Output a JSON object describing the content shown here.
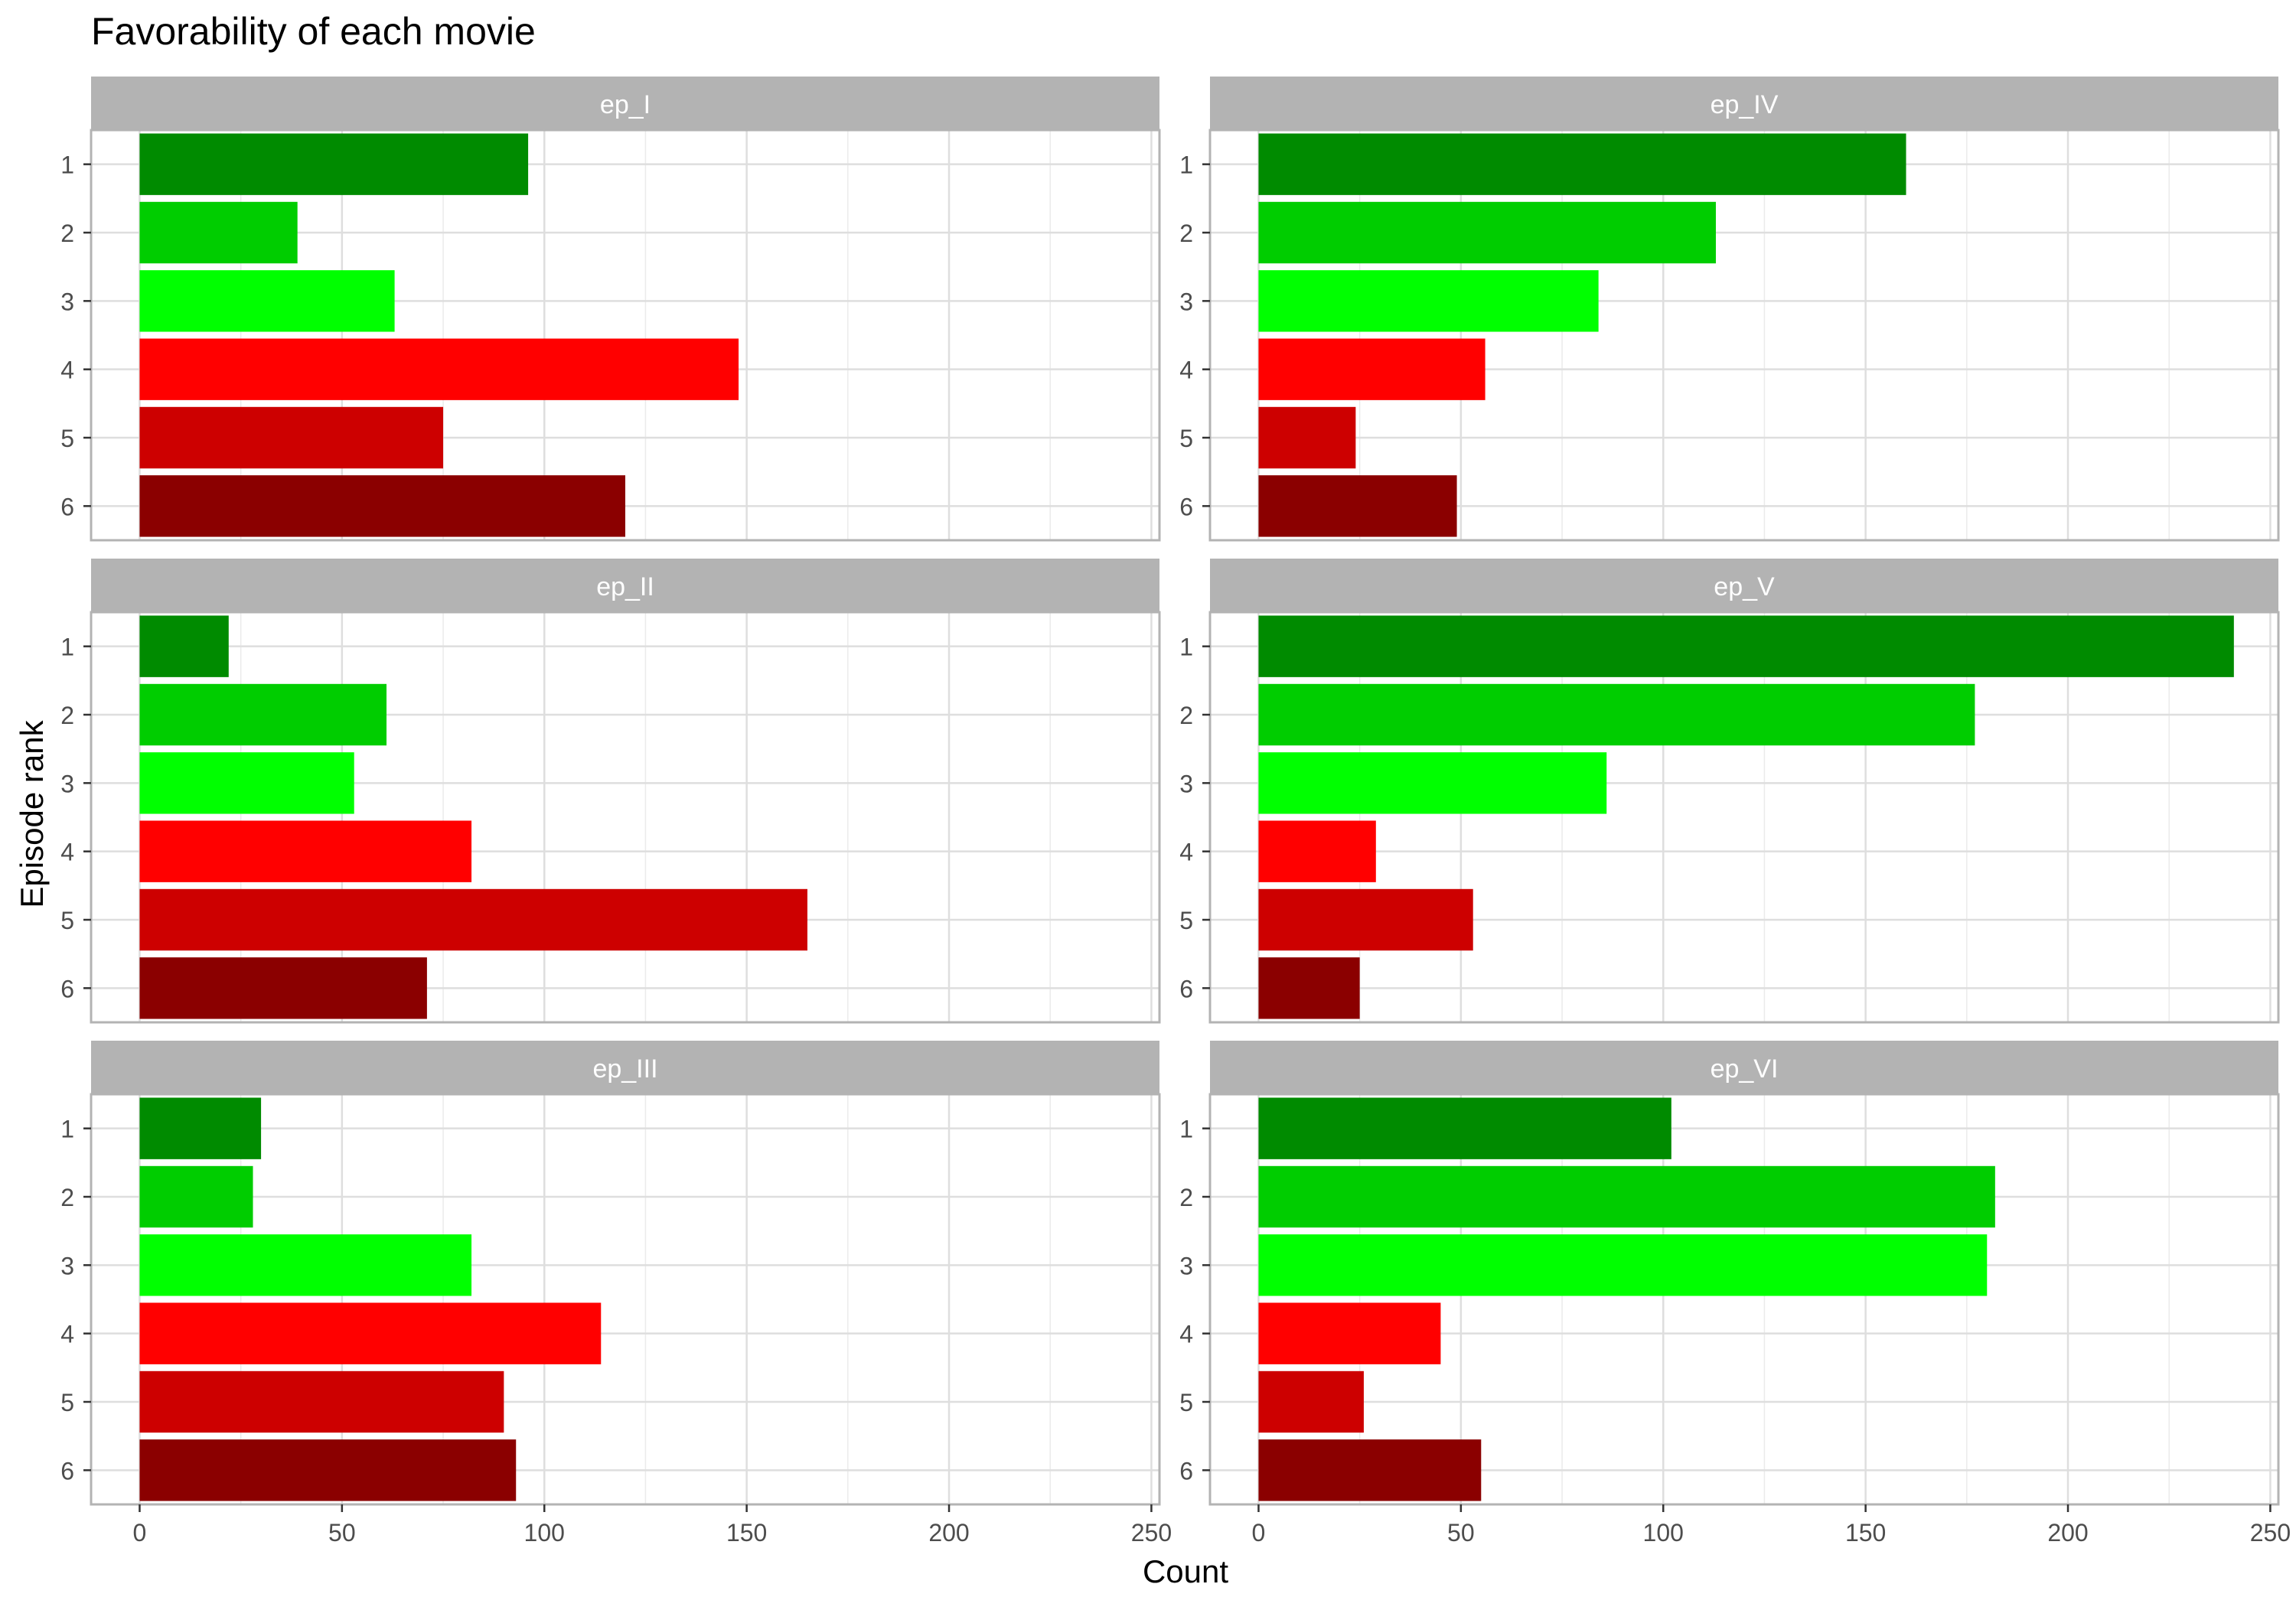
{
  "chart_data": {
    "type": "bar",
    "orientation": "horizontal",
    "title": "Favorability of each movie",
    "xlabel": "Count",
    "ylabel": "Episode rank",
    "xlim": [
      -12,
      252
    ],
    "x_ticks": [
      "0",
      "50",
      "100",
      "150",
      "200",
      "250"
    ],
    "categories": [
      "1",
      "2",
      "3",
      "4",
      "5",
      "6"
    ],
    "grid": true,
    "legend": "none",
    "bar_colors": [
      "#008B00",
      "#00CD00",
      "#00FF00",
      "#FF0000",
      "#CD0000",
      "#8B0000"
    ],
    "facet_layout": "3 rows x 2 columns",
    "facets": [
      {
        "name": "ep_I",
        "values": [
          96,
          39,
          63,
          148,
          75,
          120
        ]
      },
      {
        "name": "ep_II",
        "values": [
          22,
          61,
          53,
          82,
          165,
          71
        ]
      },
      {
        "name": "ep_III",
        "values": [
          30,
          28,
          82,
          114,
          90,
          93
        ]
      },
      {
        "name": "ep_IV",
        "values": [
          160,
          113,
          84,
          56,
          24,
          49
        ]
      },
      {
        "name": "ep_V",
        "values": [
          241,
          177,
          86,
          29,
          53,
          25
        ]
      },
      {
        "name": "ep_VI",
        "values": [
          102,
          182,
          180,
          45,
          26,
          55
        ]
      }
    ]
  }
}
